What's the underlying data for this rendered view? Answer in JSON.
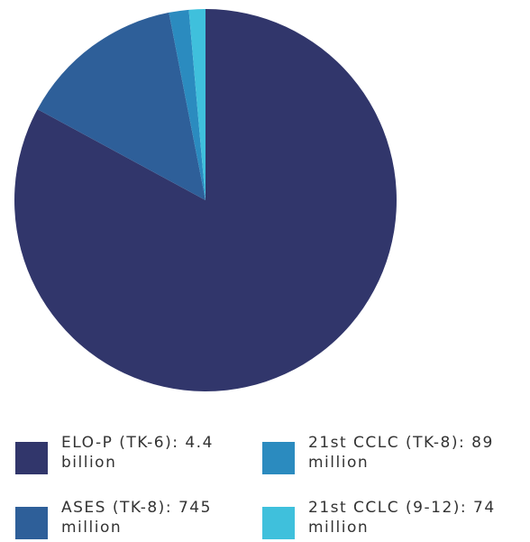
{
  "chart_data": {
    "type": "pie",
    "categories": [
      "ELO-P (TK-6): 4.4 billion",
      "ASES (TK-8): 745 million",
      "21st CCLC (TK-8): 89 million",
      "21st CCLC (9-12): 74 million"
    ],
    "values": [
      4400000000,
      745000000,
      89000000,
      74000000
    ],
    "colors": [
      "#31366b",
      "#2e5f99",
      "#2b8bbf",
      "#3fc0dc"
    ],
    "legend": "bottom"
  }
}
